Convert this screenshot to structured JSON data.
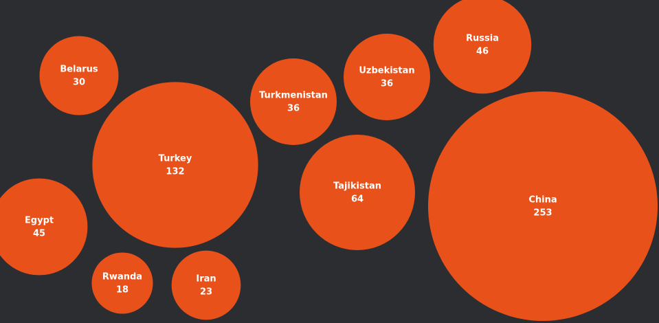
{
  "chart_data": {
    "type": "bubble",
    "categories": [
      "Belarus",
      "Turkey",
      "Egypt",
      "Rwanda",
      "Iran",
      "Turkmenistan",
      "Uzbekistan",
      "Russia",
      "Tajikistan",
      "China"
    ],
    "values": [
      30,
      132,
      45,
      18,
      23,
      36,
      36,
      46,
      64,
      253
    ],
    "color": "#e8511a"
  }
}
